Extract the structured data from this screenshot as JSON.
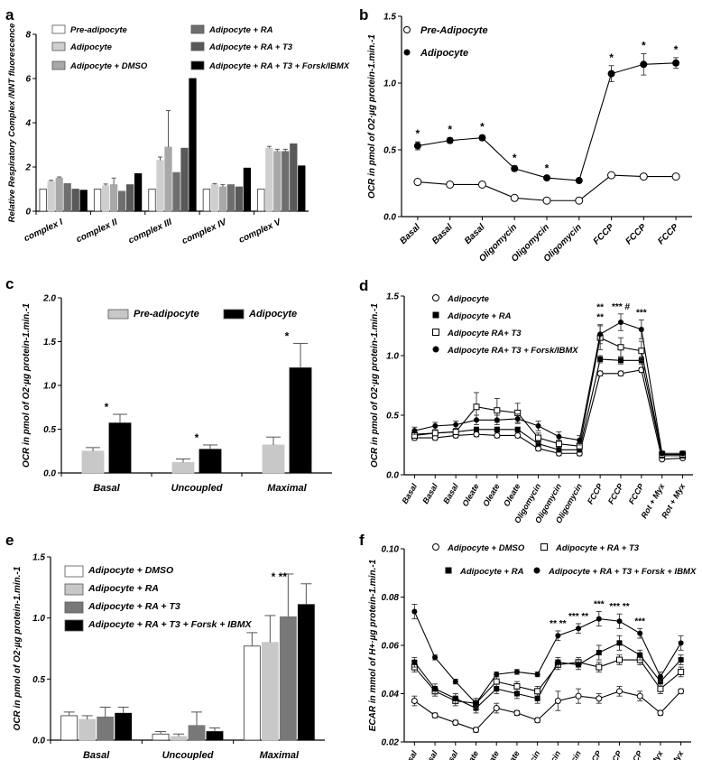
{
  "chart_data": [
    {
      "panel": "a",
      "type": "bar",
      "ylabel": "Relative Respiratory Complex /NNT  fluorescence",
      "ylim": [
        0,
        8
      ],
      "yticks": [
        "0",
        "2",
        "4",
        "6",
        "8"
      ],
      "categories": [
        "complex I",
        "complex II",
        "complex III",
        "complex IV",
        "complex V"
      ],
      "series": [
        {
          "name": "Pre-adipocyte",
          "fill": "#ffffff",
          "values": [
            1.0,
            1.0,
            1.0,
            1.0,
            1.0
          ],
          "err": [
            0,
            0,
            0,
            0,
            0
          ]
        },
        {
          "name": "Adipocyte",
          "fill": "#cfcfcf",
          "values": [
            1.35,
            1.15,
            2.3,
            1.2,
            2.85
          ],
          "err": [
            0.05,
            0.08,
            0.15,
            0.05,
            0.08
          ]
        },
        {
          "name": "Adipocyte + DMSO",
          "fill": "#a8a8a8",
          "values": [
            1.5,
            1.2,
            2.9,
            1.1,
            2.7
          ],
          "err": [
            0.05,
            0.3,
            1.65,
            0.1,
            0.1
          ]
        },
        {
          "name": "Adipocyte + RA",
          "fill": "#6e6e6e",
          "values": [
            1.25,
            0.9,
            1.75,
            1.2,
            2.7
          ],
          "err": [
            0,
            0,
            0,
            0,
            0.1
          ]
        },
        {
          "name": "Adipocyte + RA + T3",
          "fill": "#595959",
          "values": [
            1.0,
            1.2,
            2.85,
            1.1,
            3.05
          ],
          "err": [
            0,
            0,
            0,
            0,
            0
          ]
        },
        {
          "name": "Adipocyte + RA + T3 + Forsk/IBMX",
          "fill": "#000000",
          "values": [
            0.95,
            1.7,
            6.0,
            1.95,
            2.05
          ],
          "err": [
            0,
            0,
            0,
            0,
            0
          ]
        }
      ]
    },
    {
      "panel": "b",
      "type": "line",
      "ylabel": "OCR in pmol of O2·µg protein-1.min.-1",
      "ylim": [
        0,
        1.5
      ],
      "yticks": [
        "0.0",
        "0.5",
        "1.0",
        "1.5"
      ],
      "categories": [
        "Basal",
        "Basal",
        "Basal",
        "Oligomycin",
        "Oligomycin",
        "Oligomycin",
        "FCCP",
        "FCCP",
        "FCCP"
      ],
      "series": [
        {
          "name": "Pre-Adipocyte",
          "marker": "open",
          "values": [
            0.26,
            0.24,
            0.24,
            0.14,
            0.12,
            0.12,
            0.31,
            0.3,
            0.3
          ],
          "err": [
            0.01,
            0.01,
            0.01,
            0.01,
            0.01,
            0.01,
            0.01,
            0.01,
            0.01
          ]
        },
        {
          "name": "Adipocyte",
          "marker": "filled",
          "values": [
            0.53,
            0.57,
            0.59,
            0.36,
            0.29,
            0.27,
            1.07,
            1.14,
            1.15
          ],
          "err": [
            0.03,
            0.02,
            0.02,
            0.02,
            0.01,
            0.01,
            0.06,
            0.08,
            0.04
          ]
        }
      ],
      "annotations": [
        "*",
        "*",
        "*",
        "*",
        "*",
        "",
        "*",
        "*",
        "*"
      ]
    },
    {
      "panel": "c",
      "type": "bar",
      "ylabel": "OCR in pmol of O2·µg protein-1.min.-1",
      "ylim": [
        0,
        2.0
      ],
      "yticks": [
        "0.0",
        "0.5",
        "1.0",
        "1.5",
        "2.0"
      ],
      "categories": [
        "Basal",
        "Uncoupled",
        "Maximal"
      ],
      "series": [
        {
          "name": "Pre-adipocyte",
          "fill": "#c8c8c8",
          "values": [
            0.25,
            0.12,
            0.32
          ],
          "err": [
            0.04,
            0.04,
            0.09
          ]
        },
        {
          "name": "Adipocyte",
          "fill": "#000000",
          "values": [
            0.57,
            0.27,
            1.2
          ],
          "err": [
            0.1,
            0.05,
            0.28
          ]
        }
      ],
      "annotations": [
        "*",
        "*",
        "*"
      ]
    },
    {
      "panel": "d",
      "type": "line",
      "ylabel": "OCR in pmol of O2·µg protein-1.min.-1",
      "ylim": [
        0,
        1.5
      ],
      "yticks": [
        "0.0",
        "0.5",
        "1.0",
        "1.5"
      ],
      "categories": [
        "Basal",
        "Basal",
        "Basal",
        "Oleate",
        "Oleate",
        "Oleate",
        "Oligomycin",
        "Oligomycin",
        "Oligomycin",
        "FCCP",
        "FCCP",
        "FCCP",
        "Rot + Myx",
        "Rot + Myx"
      ],
      "series": [
        {
          "name": "Adipocyte",
          "marker": "open-circle",
          "values": [
            0.31,
            0.31,
            0.33,
            0.34,
            0.33,
            0.33,
            0.22,
            0.18,
            0.18,
            0.85,
            0.85,
            0.88,
            0.13,
            0.14
          ],
          "err": [
            0.02,
            0.02,
            0.02,
            0.02,
            0.02,
            0.02,
            0.02,
            0.02,
            0.02,
            0.02,
            0.02,
            0.02,
            0.01,
            0.01
          ]
        },
        {
          "name": "Adipocyte + RA",
          "marker": "filled-square",
          "values": [
            0.34,
            0.35,
            0.36,
            0.38,
            0.38,
            0.38,
            0.26,
            0.21,
            0.21,
            0.97,
            0.96,
            0.96,
            0.16,
            0.16
          ],
          "err": [
            0.02,
            0.02,
            0.02,
            0.02,
            0.02,
            0.02,
            0.02,
            0.02,
            0.02,
            0.03,
            0.03,
            0.03,
            0.01,
            0.01
          ]
        },
        {
          "name": "Adipocyte RA+ T3",
          "marker": "open-square",
          "values": [
            0.33,
            0.35,
            0.36,
            0.57,
            0.54,
            0.52,
            0.31,
            0.26,
            0.24,
            1.15,
            1.07,
            1.04,
            0.17,
            0.17
          ],
          "err": [
            0.02,
            0.02,
            0.02,
            0.12,
            0.1,
            0.08,
            0.04,
            0.03,
            0.03,
            0.1,
            0.08,
            0.08,
            0.02,
            0.02
          ]
        },
        {
          "name": "Adipocyte RA+ T3  + Forsk/IBMX",
          "marker": "filled-circle",
          "values": [
            0.37,
            0.41,
            0.42,
            0.46,
            0.46,
            0.47,
            0.41,
            0.32,
            0.29,
            1.18,
            1.28,
            1.22,
            0.18,
            0.18
          ],
          "err": [
            0.03,
            0.03,
            0.03,
            0.04,
            0.04,
            0.04,
            0.04,
            0.04,
            0.04,
            0.08,
            0.07,
            0.08,
            0.02,
            0.02
          ]
        }
      ],
      "annotations": [
        "",
        "",
        "",
        "",
        "",
        "",
        "",
        "",
        "",
        "**\n**",
        "*** #",
        "***",
        "",
        ""
      ]
    },
    {
      "panel": "e",
      "type": "bar",
      "ylabel": "OCR in pmol of O2·µg protein-1.min.-1",
      "ylim": [
        0,
        1.5
      ],
      "yticks": [
        "0.0",
        "0.5",
        "1.0",
        "1.5"
      ],
      "categories": [
        "Basal",
        "Uncoupled",
        "Maximal"
      ],
      "series": [
        {
          "name": "Adipocyte + DMSO",
          "fill": "#ffffff",
          "values": [
            0.2,
            0.05,
            0.77
          ],
          "err": [
            0.03,
            0.02,
            0.11
          ]
        },
        {
          "name": "Adipocyte + RA",
          "fill": "#c8c8c8",
          "values": [
            0.17,
            0.03,
            0.8
          ],
          "err": [
            0.03,
            0.02,
            0.22
          ]
        },
        {
          "name": "Adipocyte + RA + T3",
          "fill": "#787878",
          "values": [
            0.19,
            0.12,
            1.01
          ],
          "err": [
            0.08,
            0.11,
            0.35
          ]
        },
        {
          "name": "Adipocyte + RA + T3 + Forsk + IBMX",
          "fill": "#000000",
          "values": [
            0.22,
            0.07,
            1.11
          ],
          "err": [
            0.05,
            0.03,
            0.17
          ]
        }
      ],
      "annotations": [
        "",
        "",
        "* **"
      ]
    },
    {
      "panel": "f",
      "type": "line",
      "ylabel": "ECAR in mmol of H+·µg protein-1.min.-1",
      "ylim": [
        0.02,
        0.1
      ],
      "yticks": [
        "0.02",
        "0.04",
        "0.06",
        "0.08",
        "0.10"
      ],
      "categories": [
        "Basal",
        "Basal",
        "Basal",
        "Oleate",
        "Oleate",
        "Oleate",
        "Oligomycin",
        "Oligomycin",
        "Oligomycin",
        "FCCP",
        "FCCP",
        "FCCP",
        "Rot + Myx",
        "Rot+ Myx"
      ],
      "series": [
        {
          "name": "Adipocyte + DMSO",
          "marker": "open-circle",
          "values": [
            0.037,
            0.031,
            0.028,
            0.025,
            0.034,
            0.032,
            0.029,
            0.037,
            0.039,
            0.038,
            0.041,
            0.039,
            0.032,
            0.041
          ],
          "err": [
            0.002,
            0.001,
            0.001,
            0.001,
            0.002,
            0.001,
            0.001,
            0.004,
            0.003,
            0.002,
            0.002,
            0.002,
            0.001,
            0.001
          ]
        },
        {
          "name": "Adipocyte + RA + T3",
          "marker": "open-square",
          "values": [
            0.051,
            0.041,
            0.037,
            0.036,
            0.045,
            0.043,
            0.041,
            0.052,
            0.053,
            0.051,
            0.054,
            0.054,
            0.042,
            0.049
          ],
          "err": [
            0.002,
            0.002,
            0.002,
            0.002,
            0.002,
            0.002,
            0.002,
            0.002,
            0.002,
            0.002,
            0.002,
            0.002,
            0.002,
            0.002
          ]
        },
        {
          "name": "Adipocyte + RA",
          "marker": "filled-square",
          "values": [
            0.053,
            0.042,
            0.038,
            0.034,
            0.042,
            0.04,
            0.038,
            0.053,
            0.052,
            0.057,
            0.061,
            0.056,
            0.045,
            0.054
          ],
          "err": [
            0.002,
            0.002,
            0.002,
            0.002,
            0.002,
            0.002,
            0.002,
            0.002,
            0.002,
            0.003,
            0.003,
            0.002,
            0.002,
            0.002
          ]
        },
        {
          "name": "Adipocyte + RA + T3 + Forsk + IBMX",
          "marker": "filled-circle",
          "values": [
            0.074,
            0.055,
            0.045,
            0.036,
            0.048,
            0.049,
            0.048,
            0.064,
            0.067,
            0.071,
            0.07,
            0.065,
            0.047,
            0.061
          ],
          "err": [
            0.003,
            0.001,
            0.001,
            0.002,
            0.001,
            0.001,
            0.001,
            0.002,
            0.002,
            0.003,
            0.003,
            0.002,
            0.002,
            0.003
          ]
        }
      ],
      "annotations": [
        "",
        "",
        "",
        "",
        "",
        "",
        "",
        "** **",
        "*** **",
        "***",
        "*** **",
        "***",
        "",
        ""
      ]
    }
  ]
}
